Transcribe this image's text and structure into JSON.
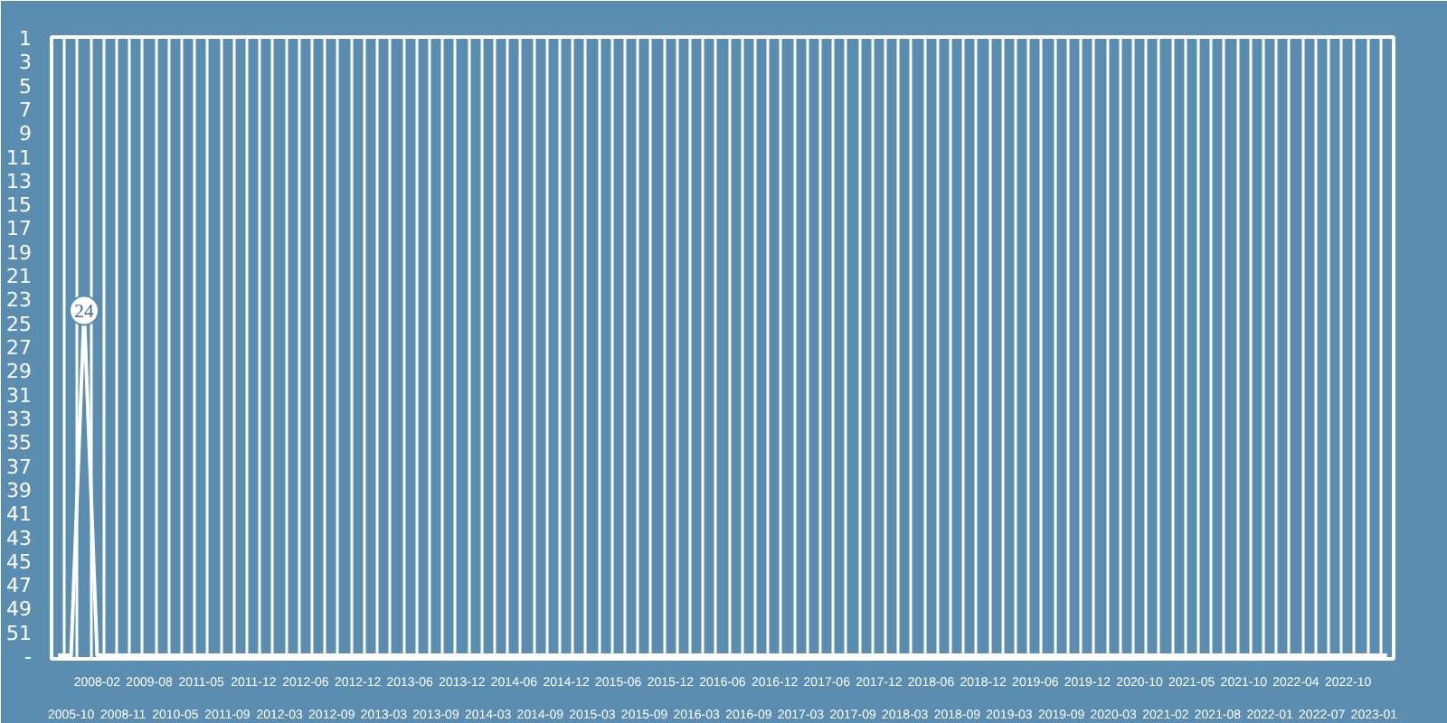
{
  "chart_data": {
    "type": "line",
    "categories": [
      null,
      "2005-10",
      null,
      "2008-02",
      null,
      "2008-11",
      null,
      "2009-08",
      null,
      "2010-05",
      null,
      "2011-05",
      null,
      "2011-09",
      null,
      "2011-12",
      null,
      "2012-03",
      null,
      "2012-06",
      null,
      "2012-09",
      null,
      "2012-12",
      null,
      "2013-03",
      null,
      "2013-06",
      null,
      "2013-09",
      null,
      "2013-12",
      null,
      "2014-03",
      null,
      "2014-06",
      null,
      "2014-09",
      null,
      "2014-12",
      null,
      "2015-03",
      null,
      "2015-06",
      null,
      "2015-09",
      null,
      "2015-12",
      null,
      "2016-03",
      null,
      "2016-06",
      null,
      "2016-09",
      null,
      "2016-12",
      null,
      "2017-03",
      null,
      "2017-06",
      null,
      "2017-09",
      null,
      "2017-12",
      null,
      "2018-03",
      null,
      "2018-06",
      null,
      "2018-09",
      null,
      "2018-12",
      null,
      "2019-03",
      null,
      "2019-06",
      null,
      "2019-09",
      null,
      "2019-12",
      null,
      "2020-03",
      null,
      "2020-10",
      null,
      "2021-02",
      null,
      "2021-05",
      null,
      "2021-08",
      null,
      "2021-10",
      null,
      "2022-01",
      null,
      "2022-04",
      null,
      "2022-07",
      null,
      "2022-10",
      null,
      "2023-01",
      null
    ],
    "series": [
      {
        "color": "#ffffff",
        "values": [
          53,
          53,
          24,
          53,
          53,
          53,
          53,
          53,
          53,
          53,
          53,
          53,
          53,
          53,
          53,
          53,
          53,
          53,
          53,
          53,
          53,
          53,
          53,
          53,
          53,
          53,
          53,
          53,
          53,
          53,
          53,
          53,
          53,
          53,
          53,
          53,
          53,
          53,
          53,
          53,
          53,
          53,
          53,
          53,
          53,
          53,
          53,
          53,
          53,
          53,
          53,
          53,
          53,
          53,
          53,
          53,
          53,
          53,
          53,
          53,
          53,
          53,
          53,
          53,
          53,
          53,
          53,
          53,
          53,
          53,
          53,
          53,
          53,
          53,
          53,
          53,
          53,
          53,
          53,
          53,
          53,
          53,
          53,
          53,
          53,
          53,
          53,
          53,
          53,
          53,
          53,
          53,
          53,
          53,
          53,
          53,
          53,
          53,
          53,
          53,
          53,
          53,
          53
        ],
        "value_labels": [
          null,
          null,
          "24",
          null,
          null,
          null,
          null,
          null,
          null,
          null,
          null,
          null,
          null,
          null,
          null,
          null,
          null,
          null,
          null,
          null,
          null,
          null,
          null,
          null,
          null,
          null,
          null,
          null,
          null,
          null,
          null,
          null,
          null,
          null,
          null,
          null,
          null,
          null,
          null,
          null,
          null,
          null,
          null,
          null,
          null,
          null,
          null,
          null,
          null,
          null,
          null,
          null,
          null,
          null,
          null,
          null,
          null,
          null,
          null,
          null,
          null,
          null,
          null,
          null,
          null,
          null,
          null,
          null,
          null,
          null,
          null,
          null,
          null,
          null,
          null,
          null,
          null,
          null,
          null,
          null,
          null,
          null,
          null,
          null,
          null,
          null,
          null,
          null,
          null,
          null,
          null,
          null,
          null,
          null,
          null,
          null,
          null,
          null,
          null,
          null,
          null,
          null,
          null
        ]
      }
    ],
    "ylim": [
      53.3,
      1
    ],
    "yticks": [
      1,
      3,
      5,
      7,
      9,
      11,
      13,
      15,
      17,
      19,
      21,
      23,
      25,
      27,
      29,
      31,
      33,
      35,
      37,
      39,
      41,
      43,
      45,
      47,
      49,
      51,
      {
        "value": 53,
        "label": "-"
      }
    ],
    "grid": "x",
    "marker": "none",
    "line_style": "solid"
  }
}
